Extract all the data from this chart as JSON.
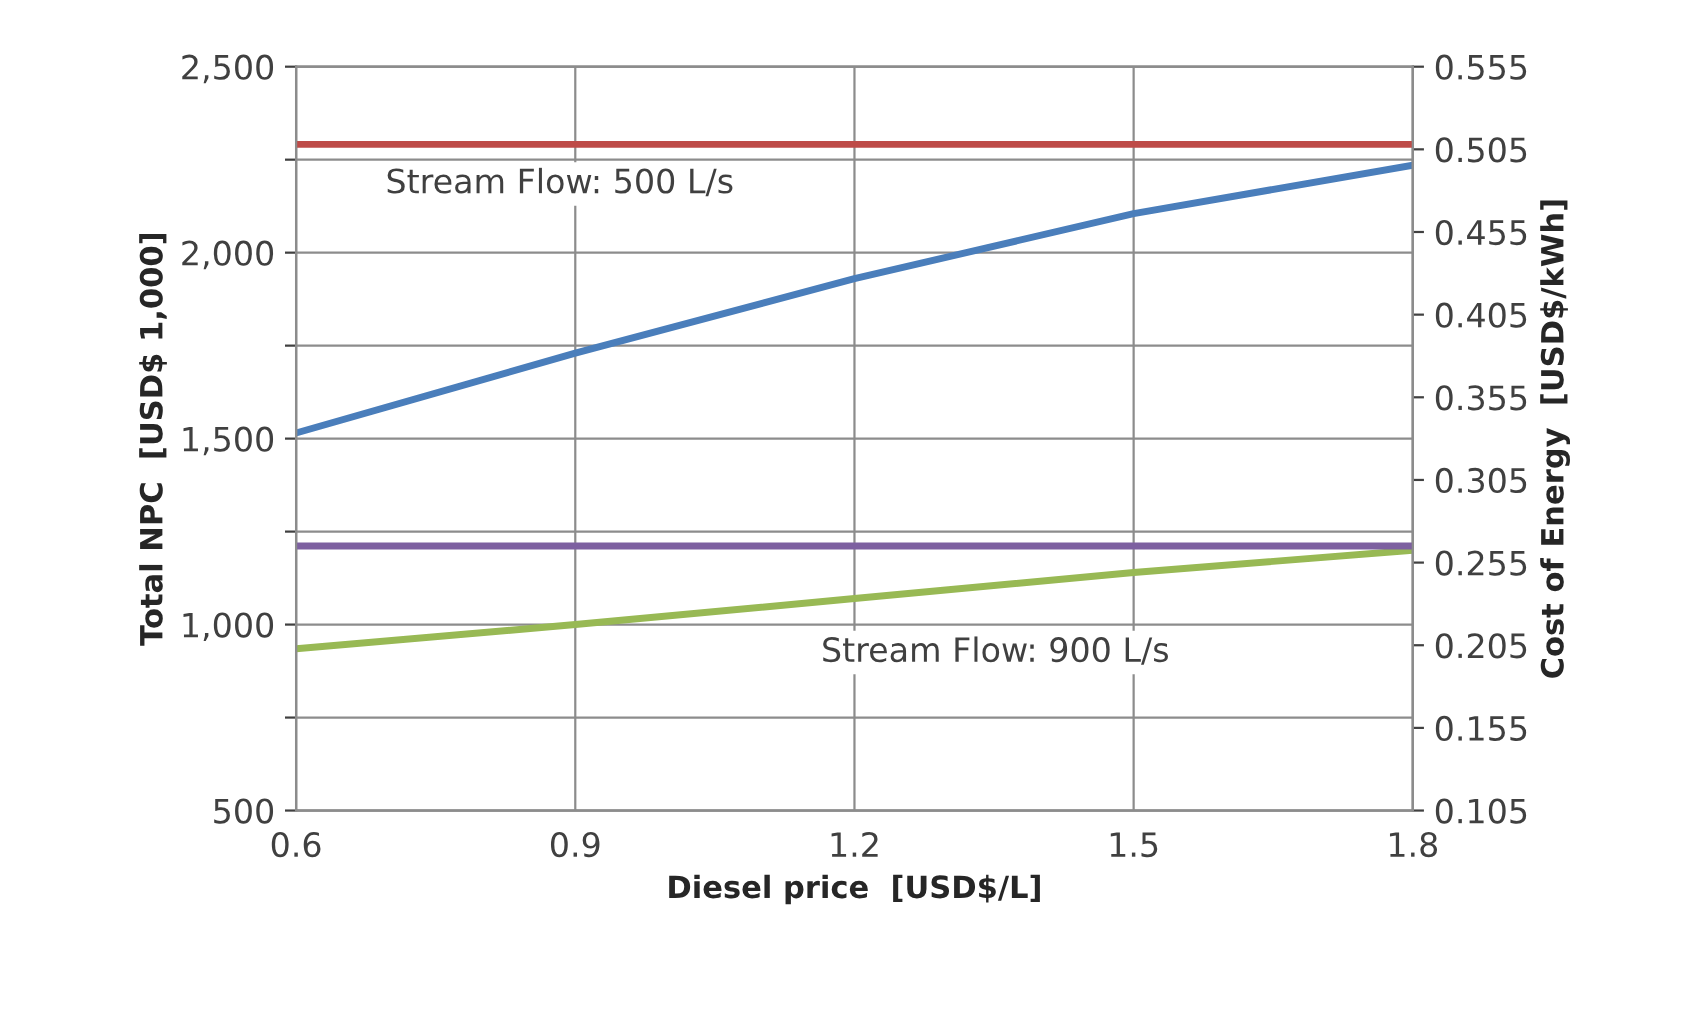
{
  "chart_data": {
    "type": "line",
    "xlabel": "Diesel price  [USD$/L]",
    "ylabel": "Total NPC  [USD$ 1,000]",
    "y2label": "Cost of Energy  [USD$/kWh]",
    "x": [
      0.6,
      0.9,
      1.2,
      1.5,
      1.8
    ],
    "series": [
      {
        "color": "#be4b48",
        "values": [
          0.508,
          0.508,
          0.508,
          0.508,
          0.508
        ],
        "axis": "y2"
      },
      {
        "color": "#4a7ebb",
        "values": [
          1515,
          1730,
          1930,
          2105,
          2235
        ]
      },
      {
        "color": "#7d60a0",
        "values": [
          0.265,
          0.265,
          0.265,
          0.265,
          0.265
        ],
        "axis": "y2"
      },
      {
        "color": "#98b954",
        "values": [
          935,
          1000,
          1070,
          1140,
          1200
        ]
      }
    ],
    "xlim": [
      0.6,
      1.8
    ],
    "xticks": [
      0.6,
      0.9,
      1.2,
      1.5,
      1.8
    ],
    "ylim": [
      500,
      2500
    ],
    "yticks": [
      {
        "value": 500,
        "label": "500"
      },
      {
        "value": 750,
        "label": null
      },
      {
        "value": 1000,
        "label": "1,000"
      },
      {
        "value": 1250,
        "label": null
      },
      {
        "value": 1500,
        "label": "1,500"
      },
      {
        "value": 1750,
        "label": null
      },
      {
        "value": 2000,
        "label": "2,000"
      },
      {
        "value": 2250,
        "label": null
      },
      {
        "value": 2500,
        "label": "2,500"
      }
    ],
    "y2lim": [
      0.105,
      0.555
    ],
    "y2ticks": [
      0.105,
      0.155,
      0.205,
      0.255,
      0.305,
      0.355,
      0.405,
      0.455,
      0.505,
      0.555
    ],
    "grid": true,
    "marker": "none",
    "line_style": "solid",
    "legend": false,
    "annotations": [
      "Stream Flow: 500 L/s",
      "Stream Flow: 900 L/s"
    ]
  }
}
